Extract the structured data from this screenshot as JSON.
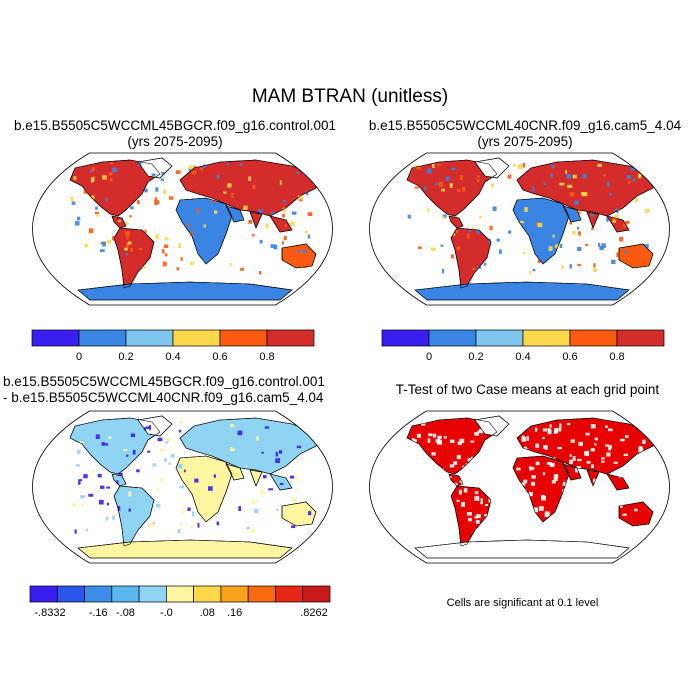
{
  "title": "MAM BTRAN (unitless)",
  "panels": [
    {
      "id": "p1",
      "title_line1": "b.e15.B5505C5WCCML45BGCR.f09_g16.control.001",
      "title_line2": "(yrs 2075-2095)"
    },
    {
      "id": "p2",
      "title_line1": "b.e15.B5505C5WCCML40CNR.f09_g16.cam5_4.04",
      "title_line2": "(yrs 2075-2095)"
    },
    {
      "id": "p3",
      "title_line1": "b.e15.B5505C5WCCML45BGCR.f09_g16.control.001",
      "title_line2": "- b.e15.B5505C5WCCML40CNR.f09_g16.cam5_4.04"
    },
    {
      "id": "p4",
      "title_line1": "T-Test of two Case means at each grid point",
      "note": "Cells are significant at 0.1 level"
    }
  ],
  "colorbar_top": {
    "colors": [
      "#3a1ff0",
      "#3a84e3",
      "#7fc6ed",
      "#fbd74a",
      "#fb5a10",
      "#d42b2b"
    ],
    "labels": [
      "0",
      "0.2",
      "0.4",
      "0.6",
      "0.8"
    ]
  },
  "colorbar_diff": {
    "colors": [
      "#3a1ff0",
      "#2b55e8",
      "#3a8eea",
      "#59b6ee",
      "#8fd4f3",
      "#fdf5a0",
      "#fbd74a",
      "#fba21c",
      "#f86a10",
      "#e62817",
      "#c81a1a"
    ],
    "labels": [
      "-.8332",
      "-.16",
      "-.08",
      "-.0",
      ".08",
      ".16",
      ".8262"
    ]
  },
  "map_colors": {
    "ocean": "#ffffff",
    "outline": "#000000",
    "dry": "#d42b2b",
    "wet": "#3a84e3",
    "mid": "#fb5a10",
    "mid2": "#fbd74a",
    "diff_land": "#fdf5a0",
    "diff_neg": "#8fd4f3",
    "diff_neg2": "#3a1ff0",
    "sig": "#e60000"
  }
}
